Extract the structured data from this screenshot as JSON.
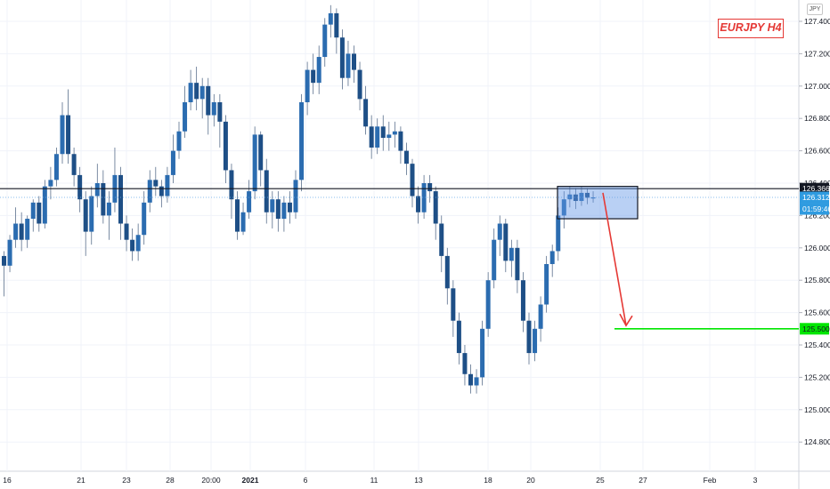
{
  "chart_data": {
    "type": "candlestick",
    "title": "EURJPY H4",
    "currency": "JPY",
    "ylim": [
      124.75,
      127.5
    ],
    "y_ticks": [
      "127.400",
      "127.200",
      "127.000",
      "126.800",
      "126.600",
      "126.400",
      "126.200",
      "126.000",
      "125.800",
      "125.600",
      "125.400",
      "125.200",
      "125.000",
      "124.800"
    ],
    "x_ticks": [
      "16",
      "21",
      "23",
      "28",
      "20:00",
      "2021",
      "6",
      "11",
      "13",
      "18",
      "20",
      "25",
      "27",
      "Feb",
      "3"
    ],
    "price_labels": [
      {
        "value": 126.366,
        "text": "126.366",
        "kind": "horizontal-line"
      },
      {
        "value": 126.312,
        "text": "126.312",
        "kind": "last-price"
      },
      {
        "text": "01:59:46",
        "kind": "countdown"
      },
      {
        "value": 125.5,
        "text": "125.500",
        "kind": "target-line"
      }
    ],
    "zone": {
      "from": 126.18,
      "to": 126.38
    },
    "arrow": {
      "from": 126.34,
      "to": 125.52
    },
    "candles": [
      [
        125.95,
        125.89,
        125.98,
        125.7
      ],
      [
        125.89,
        126.05,
        126.08,
        125.85
      ],
      [
        126.05,
        126.15,
        126.25,
        126.0
      ],
      [
        126.15,
        126.05,
        126.22,
        125.98
      ],
      [
        126.05,
        126.18,
        126.2,
        126.0
      ],
      [
        126.18,
        126.28,
        126.3,
        126.1
      ],
      [
        126.28,
        126.15,
        126.32,
        126.1
      ],
      [
        126.15,
        126.38,
        126.42,
        126.12
      ],
      [
        126.38,
        126.42,
        126.5,
        126.3
      ],
      [
        126.42,
        126.58,
        126.62,
        126.38
      ],
      [
        126.58,
        126.82,
        126.9,
        126.52
      ],
      [
        126.82,
        126.58,
        126.98,
        126.52
      ],
      [
        126.58,
        126.45,
        126.62,
        126.38
      ],
      [
        126.45,
        126.3,
        126.5,
        126.22
      ],
      [
        126.3,
        126.1,
        126.35,
        125.95
      ],
      [
        126.1,
        126.32,
        126.38,
        126.02
      ],
      [
        126.32,
        126.4,
        126.52,
        126.25
      ],
      [
        126.4,
        126.2,
        126.48,
        126.15
      ],
      [
        126.2,
        126.28,
        126.35,
        126.05
      ],
      [
        126.28,
        126.45,
        126.62,
        126.22
      ],
      [
        126.45,
        126.15,
        126.5,
        126.05
      ],
      [
        126.15,
        126.05,
        126.2,
        125.98
      ],
      [
        126.05,
        125.98,
        126.12,
        125.92
      ],
      [
        125.98,
        126.08,
        126.15,
        125.92
      ],
      [
        126.08,
        126.28,
        126.35,
        126.02
      ],
      [
        126.28,
        126.42,
        126.48,
        126.22
      ],
      [
        126.42,
        126.38,
        126.5,
        126.32
      ],
      [
        126.38,
        126.32,
        126.42,
        126.25
      ],
      [
        126.32,
        126.45,
        126.5,
        126.28
      ],
      [
        126.45,
        126.6,
        126.7,
        126.4
      ],
      [
        126.6,
        126.72,
        126.78,
        126.55
      ],
      [
        126.72,
        126.9,
        127.0,
        126.68
      ],
      [
        126.9,
        127.02,
        127.1,
        126.85
      ],
      [
        127.02,
        126.92,
        127.12,
        126.85
      ],
      [
        126.92,
        127.0,
        127.05,
        126.8
      ],
      [
        127.0,
        126.82,
        127.05,
        126.7
      ],
      [
        126.82,
        126.9,
        126.95,
        126.75
      ],
      [
        126.9,
        126.78,
        126.95,
        126.62
      ],
      [
        126.78,
        126.48,
        126.82,
        126.4
      ],
      [
        126.48,
        126.3,
        126.52,
        126.18
      ],
      [
        126.3,
        126.1,
        126.35,
        126.05
      ],
      [
        126.1,
        126.22,
        126.28,
        126.08
      ],
      [
        126.22,
        126.35,
        126.42,
        126.18
      ],
      [
        126.35,
        126.7,
        126.75,
        126.3
      ],
      [
        126.7,
        126.48,
        126.72,
        126.38
      ],
      [
        126.48,
        126.22,
        126.55,
        126.15
      ],
      [
        126.22,
        126.3,
        126.35,
        126.12
      ],
      [
        126.3,
        126.18,
        126.35,
        126.1
      ],
      [
        126.18,
        126.28,
        126.32,
        126.1
      ],
      [
        126.28,
        126.22,
        126.35,
        126.15
      ],
      [
        126.22,
        126.42,
        126.48,
        126.18
      ],
      [
        126.42,
        126.9,
        126.95,
        126.35
      ],
      [
        126.9,
        127.1,
        127.15,
        126.82
      ],
      [
        127.1,
        127.02,
        127.2,
        126.95
      ],
      [
        127.02,
        127.18,
        127.25,
        126.95
      ],
      [
        127.18,
        127.38,
        127.42,
        127.12
      ],
      [
        127.38,
        127.45,
        127.5,
        127.3
      ],
      [
        127.45,
        127.3,
        127.48,
        127.2
      ],
      [
        127.3,
        127.05,
        127.35,
        126.98
      ],
      [
        127.05,
        127.2,
        127.28,
        127.0
      ],
      [
        127.2,
        127.1,
        127.25,
        127.02
      ],
      [
        127.1,
        126.92,
        127.15,
        126.85
      ],
      [
        126.92,
        126.75,
        127.0,
        126.7
      ],
      [
        126.75,
        126.62,
        126.82,
        126.55
      ],
      [
        126.62,
        126.75,
        126.8,
        126.58
      ],
      [
        126.75,
        126.68,
        126.82,
        126.6
      ],
      [
        126.68,
        126.7,
        126.78,
        126.6
      ],
      [
        126.7,
        126.72,
        126.78,
        126.62
      ],
      [
        126.72,
        126.6,
        126.75,
        126.52
      ],
      [
        126.6,
        126.52,
        126.65,
        126.45
      ],
      [
        126.52,
        126.32,
        126.55,
        126.25
      ],
      [
        126.32,
        126.22,
        126.38,
        126.15
      ],
      [
        126.22,
        126.4,
        126.45,
        126.18
      ],
      [
        126.4,
        126.35,
        126.45,
        126.28
      ],
      [
        126.35,
        126.15,
        126.38,
        126.05
      ],
      [
        126.15,
        125.95,
        126.2,
        125.85
      ],
      [
        125.95,
        125.75,
        126.0,
        125.65
      ],
      [
        125.75,
        125.55,
        125.8,
        125.45
      ],
      [
        125.55,
        125.35,
        125.6,
        125.28
      ],
      [
        125.35,
        125.22,
        125.4,
        125.15
      ],
      [
        125.22,
        125.15,
        125.28,
        125.1
      ],
      [
        125.15,
        125.2,
        125.25,
        125.1
      ],
      [
        125.2,
        125.5,
        125.55,
        125.15
      ],
      [
        125.5,
        125.8,
        125.85,
        125.45
      ],
      [
        125.8,
        126.05,
        126.12,
        125.75
      ],
      [
        126.05,
        126.15,
        126.2,
        125.95
      ],
      [
        126.15,
        125.92,
        126.18,
        125.85
      ],
      [
        125.92,
        126.0,
        126.05,
        125.82
      ],
      [
        126.0,
        125.8,
        126.05,
        125.72
      ],
      [
        125.8,
        125.55,
        125.85,
        125.48
      ],
      [
        125.55,
        125.35,
        125.6,
        125.28
      ],
      [
        125.35,
        125.5,
        125.55,
        125.3
      ],
      [
        125.5,
        125.65,
        125.7,
        125.42
      ],
      [
        125.65,
        125.9,
        125.95,
        125.6
      ],
      [
        125.9,
        125.98,
        126.02,
        125.82
      ],
      [
        125.98,
        126.2,
        126.25,
        125.92
      ],
      [
        126.2,
        126.3,
        126.35,
        126.12
      ],
      [
        126.3,
        126.33,
        126.38,
        126.25
      ],
      [
        126.33,
        126.29,
        126.37,
        126.24
      ],
      [
        126.29,
        126.34,
        126.38,
        126.26
      ],
      [
        126.34,
        126.31,
        126.37,
        126.27
      ],
      [
        126.31,
        126.312,
        126.35,
        126.28
      ]
    ]
  }
}
